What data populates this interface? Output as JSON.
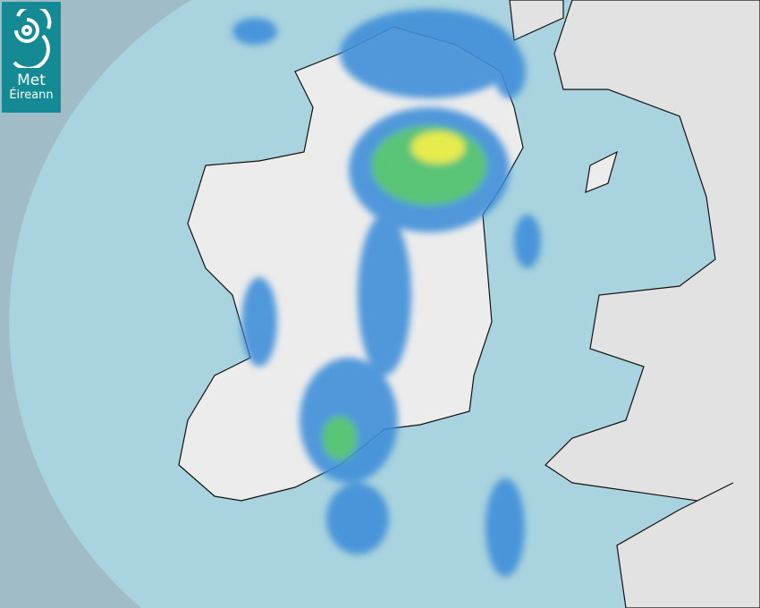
{
  "brand": {
    "line1": "Met",
    "line2": "Éireann",
    "color": "#138a94"
  },
  "map": {
    "type": "rainfall radar",
    "colors": {
      "outside_coverage": "#9fbcc7",
      "sea": "#a9d3de",
      "land": "#ececec",
      "rain_light": "#3f8fd9",
      "rain_moderate": "#4cc06a",
      "rain_heavy": "#e6ec3a"
    }
  }
}
